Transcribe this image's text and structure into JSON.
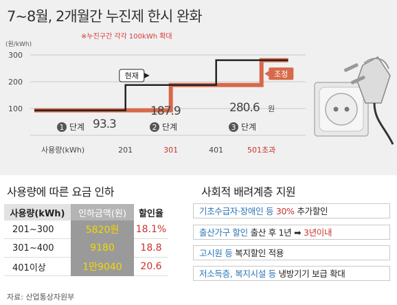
{
  "headline": "7~8월, 2개월간 누진제 한시 완화",
  "note": "※누진구간 각각 100kWh 확대",
  "chart_data": {
    "type": "line",
    "ylabel": "(원/kWh)",
    "yticks": [
      "300",
      "200",
      "100"
    ],
    "yvalues": [
      300,
      200,
      100
    ],
    "xlabel": "사용량(kWh)",
    "xticks": [
      {
        "label": "201",
        "value": 201,
        "color": "#444444"
      },
      {
        "label": "301",
        "value": 301,
        "color": "#c8322b"
      },
      {
        "label": "401",
        "value": 401,
        "color": "#444444"
      },
      {
        "label": "501초과",
        "value": 501,
        "color": "#c8322b"
      }
    ],
    "series": [
      {
        "name": "현재",
        "color": "#222222",
        "x": [
          0,
          201,
          201,
          401,
          401,
          560
        ],
        "y": [
          93.3,
          93.3,
          187.9,
          187.9,
          280.6,
          280.6
        ]
      },
      {
        "name": "조정",
        "color": "#d7694a",
        "x": [
          0,
          301,
          301,
          501,
          501,
          560
        ],
        "y": [
          93.3,
          93.3,
          187.9,
          187.9,
          280.6,
          280.6
        ]
      }
    ],
    "tiers": [
      {
        "num": "1",
        "label": "단계",
        "value": "93.3",
        "unit": ""
      },
      {
        "num": "2",
        "label": "단계",
        "value": "187.9",
        "unit": ""
      },
      {
        "num": "3",
        "label": "단계",
        "value": "280.6",
        "unit": "원"
      }
    ]
  },
  "rates": {
    "title": "사용량에 따른 요금 인하",
    "headers": [
      "사용량(kWh)",
      "인하금액(원)",
      "할인율"
    ],
    "rows": [
      [
        "201~300",
        "5820원",
        "18.1%"
      ],
      [
        "301~400",
        "9180",
        "18.8"
      ],
      [
        "401이상",
        "1만9040",
        "20.6"
      ]
    ]
  },
  "support": {
    "title": "사회적 배려계층 지원",
    "items": [
      {
        "hl": "기초수급자·장애인 등",
        "pct": "30%",
        "plain": "추가할인"
      },
      {
        "hl": "출산가구 할인",
        "plain1": "출산 후 1년",
        "arrow": "➡",
        "pct": "3년이내"
      },
      {
        "hl": "고시원 등",
        "plain": "복지할인 적용"
      },
      {
        "hl": "저소득층, 복지시설 등",
        "plain": "냉방기기 보급 확대"
      }
    ]
  },
  "source": "자료: 산업통상자원부",
  "icons": [
    "plug-icon",
    "socket-icon",
    "circled-number-icon",
    "arrow-right-icon"
  ]
}
